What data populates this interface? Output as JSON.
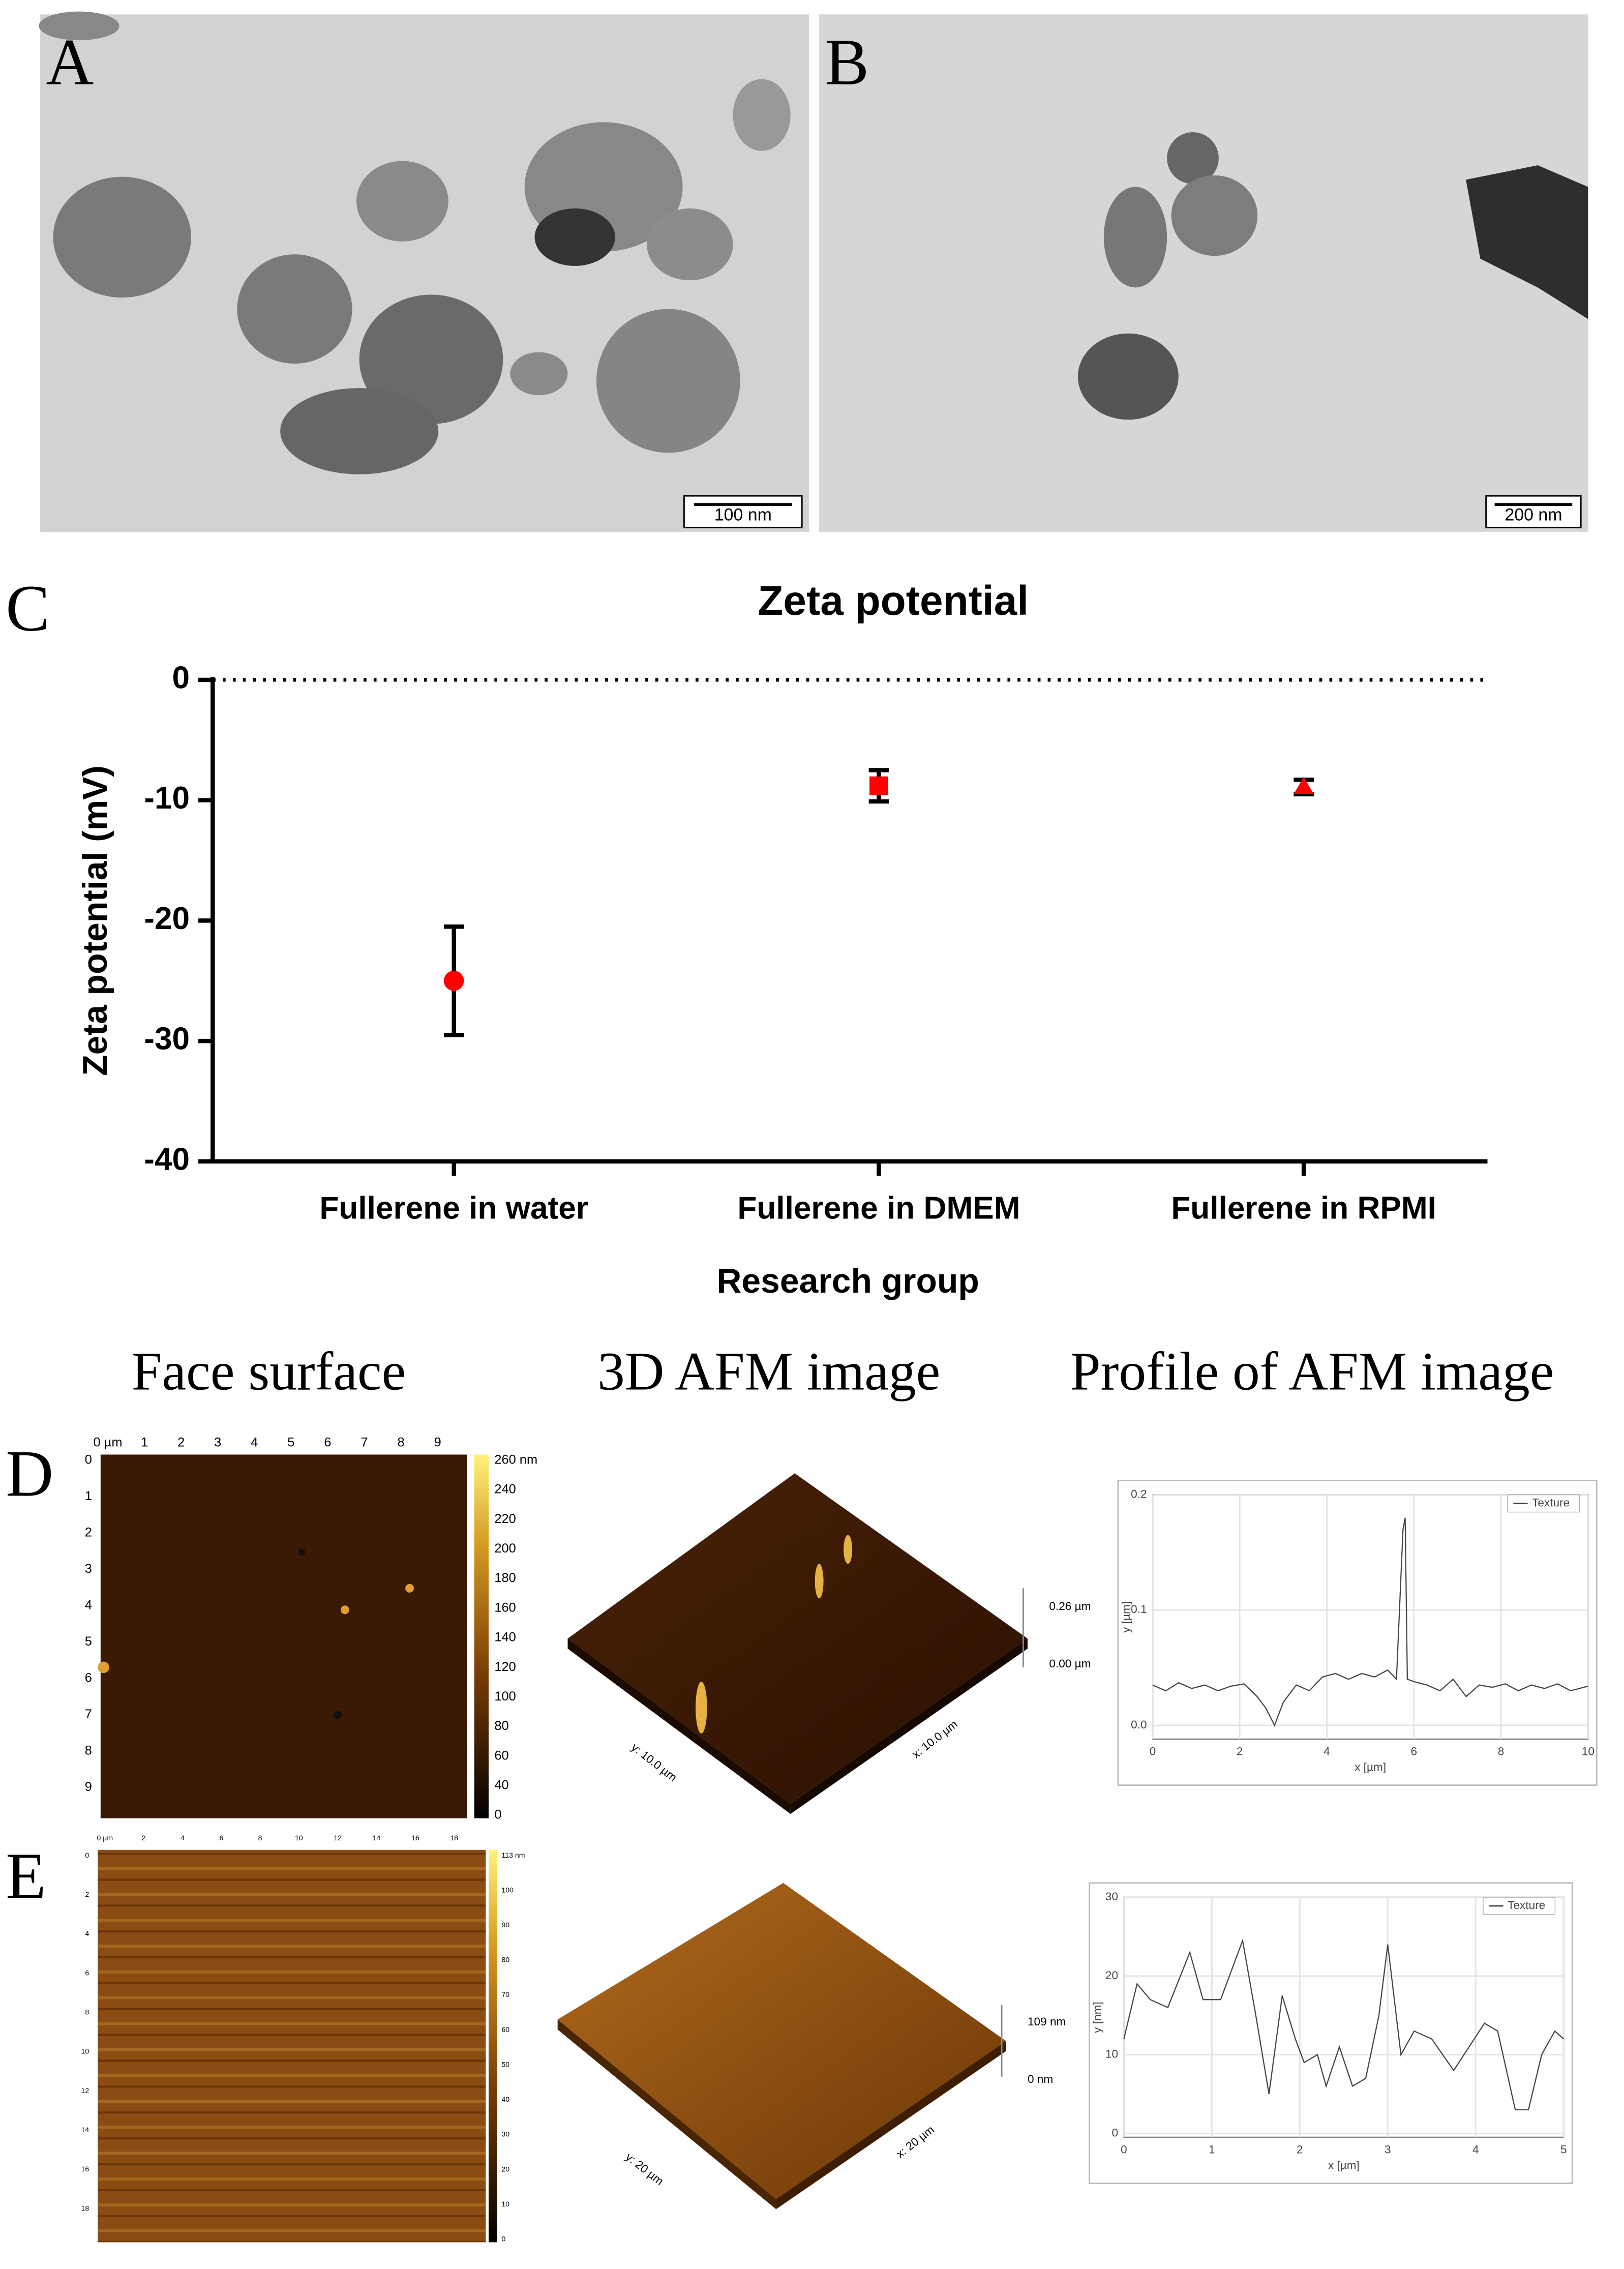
{
  "panels": {
    "a": {
      "label": "A",
      "scale_bar": "100 nm"
    },
    "b": {
      "label": "B",
      "scale_bar": "200 nm"
    },
    "c": {
      "label": "C"
    },
    "d": {
      "label": "D"
    },
    "e": {
      "label": "E"
    },
    "headings": [
      "Face surface",
      "3D AFM image",
      "Profile of AFM image"
    ],
    "face_d": {
      "xticks": [
        "0 µm",
        "1",
        "2",
        "3",
        "4",
        "5",
        "6",
        "7",
        "8",
        "9"
      ],
      "yticks": [
        "0",
        "1",
        "2",
        "3",
        "4",
        "5",
        "6",
        "7",
        "8",
        "9"
      ],
      "colorbar": [
        "260 nm",
        "240",
        "220",
        "200",
        "180",
        "160",
        "140",
        "120",
        "100",
        "80",
        "60",
        "40",
        "0"
      ]
    },
    "face_e": {
      "xticks": [
        "0 µm",
        "2",
        "4",
        "6",
        "8",
        "10",
        "12",
        "14",
        "16",
        "18"
      ],
      "yticks": [
        "0",
        "2",
        "4",
        "6",
        "8",
        "10",
        "12",
        "14",
        "16",
        "18"
      ],
      "colorbar": [
        "113 nm",
        "100",
        "90",
        "80",
        "70",
        "60",
        "50",
        "40",
        "30",
        "20",
        "10",
        "0"
      ]
    },
    "afm3d_d": {
      "z_top": "0.26 µm",
      "z_bottom": "0.00 µm",
      "y_axis": "y: 10.0 µm",
      "x_axis": "x: 10.0 µm"
    },
    "afm3d_e": {
      "z_top": "109 nm",
      "z_bottom": "0 nm",
      "y_axis": "y: 20 µm",
      "x_axis": "x: 20 µm"
    }
  },
  "chart_data": [
    {
      "type": "errorbar",
      "title": "Zeta potential",
      "x_label": "Research group",
      "y_label": "Zeta potential (mV)",
      "categories": [
        "Fullerene in water",
        "Fullerene in DMEM",
        "Fullerene in RPMI"
      ],
      "values": [
        -25,
        -8.8,
        -8.9
      ],
      "errors": [
        4.5,
        1.3,
        0.6
      ],
      "markers": [
        "circle",
        "square",
        "triangle"
      ],
      "color": "#ff0000",
      "ylim": [
        -40,
        0
      ],
      "yticks": [
        -40,
        -30,
        -20,
        -10,
        0
      ],
      "zero_line": "dotted"
    },
    {
      "type": "line",
      "x_label": "x [µm]",
      "y_label": "y [µm]",
      "x": [
        0,
        0.3,
        0.6,
        0.9,
        1.2,
        1.5,
        1.8,
        2.1,
        2.4,
        2.6,
        2.8,
        3.0,
        3.3,
        3.6,
        3.9,
        4.2,
        4.5,
        4.8,
        5.1,
        5.4,
        5.6,
        5.75,
        5.8,
        5.85,
        6.0,
        6.3,
        6.6,
        6.9,
        7.2,
        7.5,
        7.8,
        8.1,
        8.4,
        8.7,
        9.0,
        9.3,
        9.6,
        10
      ],
      "series": [
        {
          "name": "Texture",
          "color": "#444444",
          "values": [
            0.035,
            0.03,
            0.037,
            0.032,
            0.035,
            0.03,
            0.034,
            0.036,
            0.025,
            0.015,
            0.0,
            0.02,
            0.035,
            0.03,
            0.042,
            0.045,
            0.04,
            0.045,
            0.042,
            0.048,
            0.04,
            0.17,
            0.18,
            0.04,
            0.038,
            0.035,
            0.03,
            0.04,
            0.025,
            0.035,
            0.033,
            0.036,
            0.03,
            0.035,
            0.032,
            0.036,
            0.03,
            0.034
          ]
        }
      ],
      "xlim": [
        0,
        10
      ],
      "xticks": [
        0,
        2,
        4,
        6,
        8,
        10
      ],
      "ylim": [
        -0.012,
        0.2
      ],
      "yticks": [
        {
          "value": 0,
          "label": "0.0"
        },
        {
          "value": 0.1,
          "label": "0.1"
        },
        {
          "value": 0.2,
          "label": "0.2"
        }
      ],
      "grid": true,
      "legend": "top-right"
    },
    {
      "type": "line",
      "x_label": "x [µm]",
      "y_label": "y [nm]",
      "x": [
        0,
        0.15,
        0.3,
        0.5,
        0.75,
        0.9,
        1.1,
        1.35,
        1.5,
        1.65,
        1.8,
        1.95,
        2.05,
        2.2,
        2.3,
        2.45,
        2.6,
        2.75,
        2.9,
        3.0,
        3.15,
        3.3,
        3.5,
        3.75,
        4.1,
        4.25,
        4.45,
        4.6,
        4.75,
        4.9,
        5
      ],
      "series": [
        {
          "name": "Texture",
          "color": "#444444",
          "values": [
            12,
            19,
            17,
            16,
            23,
            17,
            17,
            24.5,
            15,
            5,
            17.5,
            12,
            9,
            10,
            6,
            11,
            6,
            7,
            15,
            24,
            10,
            13,
            12,
            8,
            14,
            13,
            3,
            3,
            10,
            13,
            12
          ]
        }
      ],
      "xlim": [
        0,
        5
      ],
      "xticks": [
        0,
        1,
        2,
        3,
        4,
        5
      ],
      "ylim": [
        -0.5,
        30
      ],
      "yticks": [
        0,
        10,
        20,
        30
      ],
      "grid": true,
      "legend": "top-right"
    }
  ]
}
